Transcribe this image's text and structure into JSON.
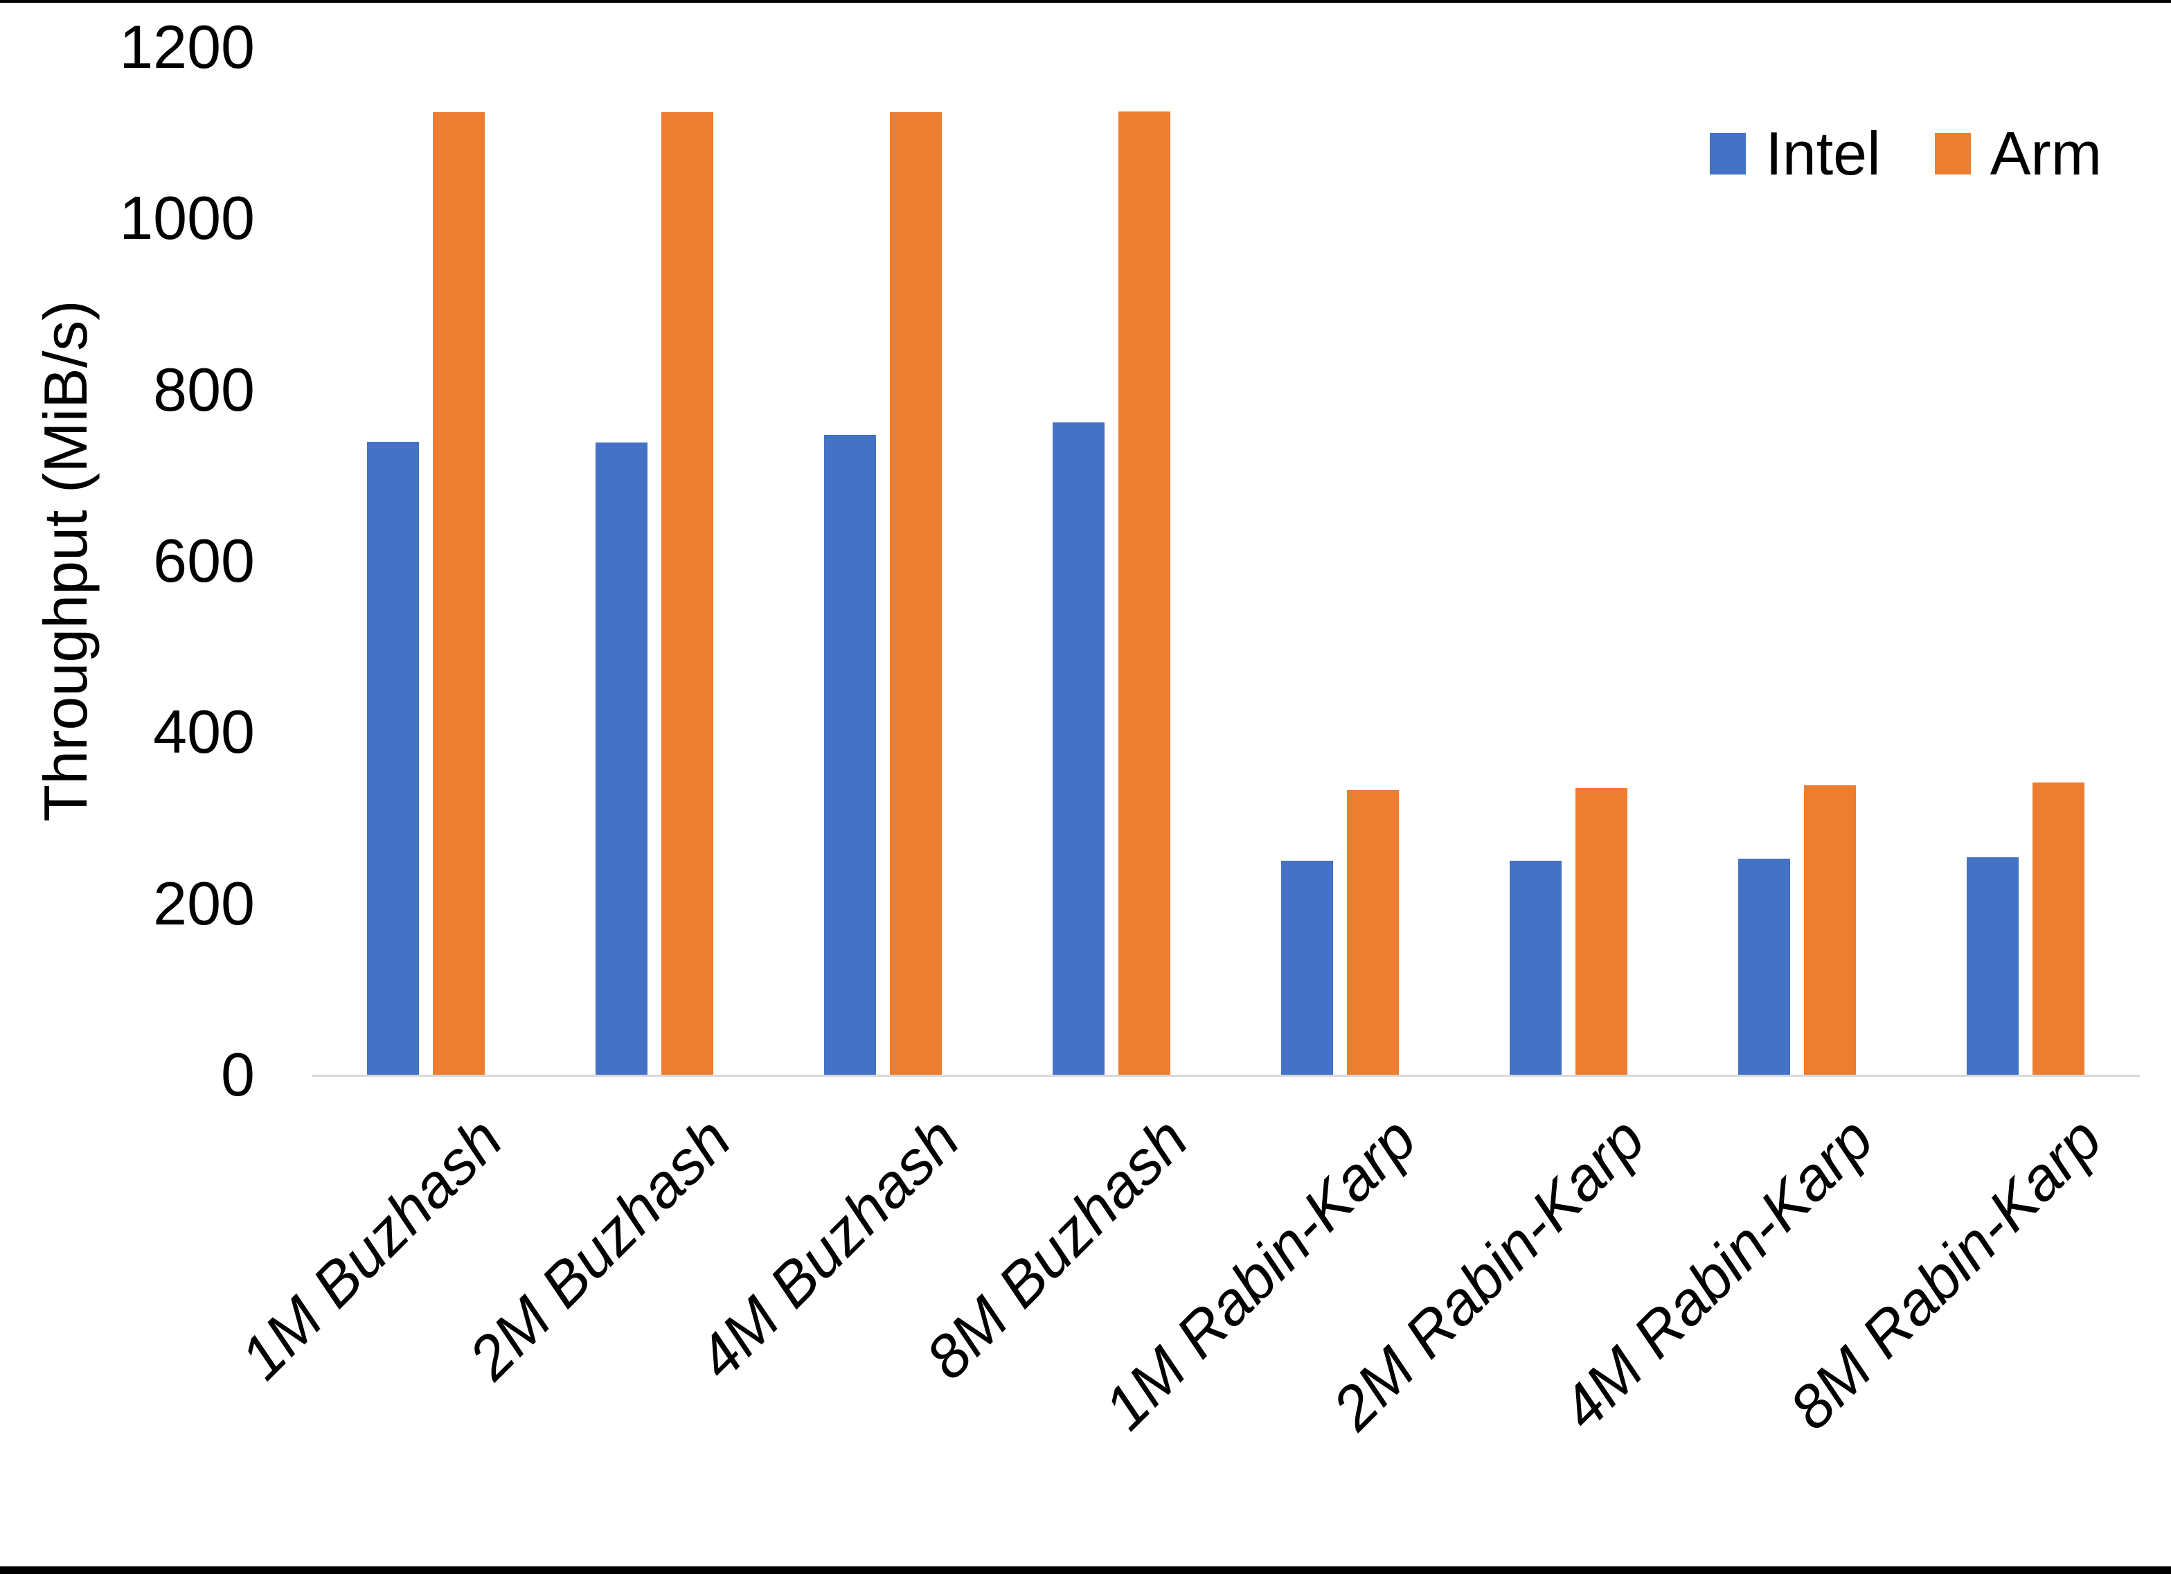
{
  "chart_data": {
    "type": "bar",
    "title": "",
    "xlabel": "",
    "ylabel": "Throughput (MiB/s)",
    "ylim": [
      0,
      1200
    ],
    "ytick_interval": 200,
    "yticks": [
      "0",
      "200",
      "400",
      "600",
      "800",
      "1000",
      "1200"
    ],
    "grid": false,
    "legend_position": "top-right",
    "categories": [
      "1M Buzhash",
      "2M Buzhash",
      "4M Buzhash",
      "8M Buzhash",
      "1M Rabin-Karp",
      "2M Rabin-Karp",
      "4M Rabin-Karp",
      "8M Rabin-Karp"
    ],
    "series": [
      {
        "name": "Intel",
        "color": "#4472C4",
        "values": [
          739,
          738,
          747,
          762,
          250,
          250,
          252,
          254
        ]
      },
      {
        "name": "Arm",
        "color": "#ED7D31",
        "values": [
          1124,
          1124,
          1124,
          1125,
          332,
          335,
          338,
          341
        ]
      }
    ],
    "axis_line_color": "#D9D9D9",
    "text_color": "#000000"
  }
}
